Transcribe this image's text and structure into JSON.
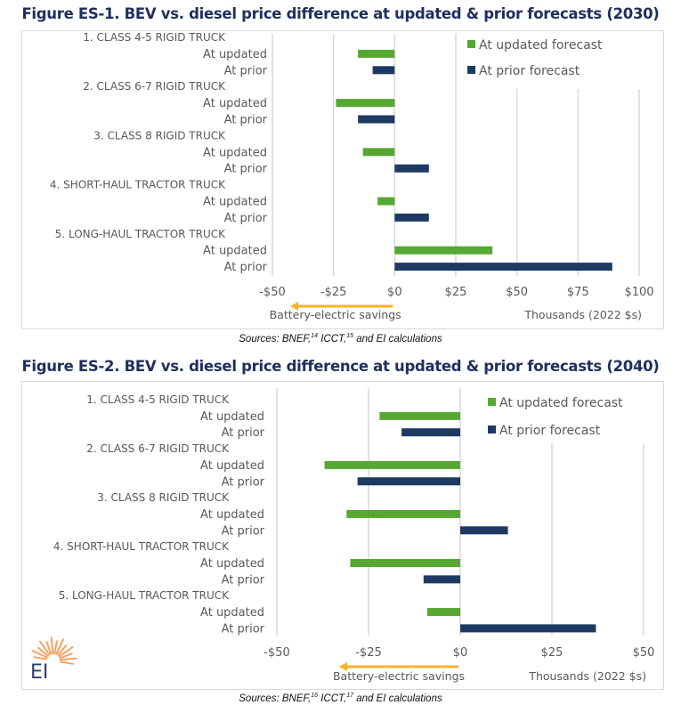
{
  "figures": [
    {
      "title": "Figure ES-1. BEV vs. diesel price difference at updated & prior forecasts (2030)",
      "sources": {
        "prefix": "Sources: BNEF,",
        "ref1": "14",
        "mid": " ICCT,",
        "ref2": "15",
        "suffix": " and EI calculations"
      }
    },
    {
      "title": "Figure ES-2. BEV vs. diesel price difference at updated & prior forecasts (2040)",
      "sources": {
        "prefix": "Sources: BNEF,",
        "ref1": "16",
        "mid": " ICCT,",
        "ref2": "17",
        "suffix": " and EI calculations"
      }
    }
  ],
  "logo": {
    "text": "EI",
    "icon": "sunburst-logo-icon",
    "color": "#f4914a",
    "text_color": "#2e3f6e"
  },
  "colors": {
    "updated": "#57a832",
    "prior": "#1e3a63",
    "arrow": "#f7b32b",
    "grid": "#d9d9d9",
    "title": "#1f2f5c"
  },
  "chart_data": [
    {
      "type": "bar",
      "orientation": "horizontal",
      "title": "Figure ES-1. BEV vs. diesel price difference at updated & prior forecasts (2030)",
      "groups": [
        "1. CLASS 4-5 RIGID TRUCK",
        "2. CLASS 6-7 RIGID TRUCK",
        "3. CLASS 8 RIGID TRUCK",
        "4. SHORT-HAUL TRACTOR TRUCK",
        "5. LONG-HAUL TRACTOR TRUCK"
      ],
      "sub_labels": [
        "At updated",
        "At prior"
      ],
      "series": [
        {
          "name": "At updated forecast",
          "values": [
            -15,
            -24,
            -13,
            -7,
            40
          ]
        },
        {
          "name": "At prior forecast",
          "values": [
            -9,
            -15,
            14,
            14,
            89
          ]
        }
      ],
      "xlim": [
        -50,
        100
      ],
      "xticks": [
        -50,
        -25,
        0,
        25,
        50,
        75,
        100
      ],
      "xtick_labels": [
        "-$50",
        "-$25",
        "$0",
        "$25",
        "$50",
        "$75",
        "$100"
      ],
      "xlabel": "Thousands (2022 $s)",
      "annotation": "Battery-electric savings",
      "legend": [
        "At updated forecast",
        "At prior forecast"
      ],
      "legend_position": "top-right",
      "grid": true
    },
    {
      "type": "bar",
      "orientation": "horizontal",
      "title": "Figure ES-2. BEV vs. diesel price difference at updated & prior forecasts (2040)",
      "groups": [
        "1. CLASS 4-5 RIGID TRUCK",
        "2. CLASS 6-7 RIGID TRUCK",
        "3. CLASS 8 RIGID TRUCK",
        "4. SHORT-HAUL TRACTOR TRUCK",
        "5. LONG-HAUL TRACTOR TRUCK"
      ],
      "sub_labels": [
        "At updated",
        "At prior"
      ],
      "series": [
        {
          "name": "At updated forecast",
          "values": [
            -22,
            -37,
            -31,
            -30,
            -9
          ]
        },
        {
          "name": "At prior forecast",
          "values": [
            -16,
            -28,
            13,
            -10,
            37
          ]
        }
      ],
      "xlim": [
        -50,
        50
      ],
      "xticks": [
        -50,
        -25,
        0,
        25,
        50
      ],
      "xtick_labels": [
        "-$50",
        "-$25",
        "$0",
        "$25",
        "$50"
      ],
      "xlabel": "Thousands (2022 $s)",
      "annotation": "Battery-electric savings",
      "legend": [
        "At updated forecast",
        "At prior forecast"
      ],
      "legend_position": "top-right",
      "grid": true
    }
  ]
}
